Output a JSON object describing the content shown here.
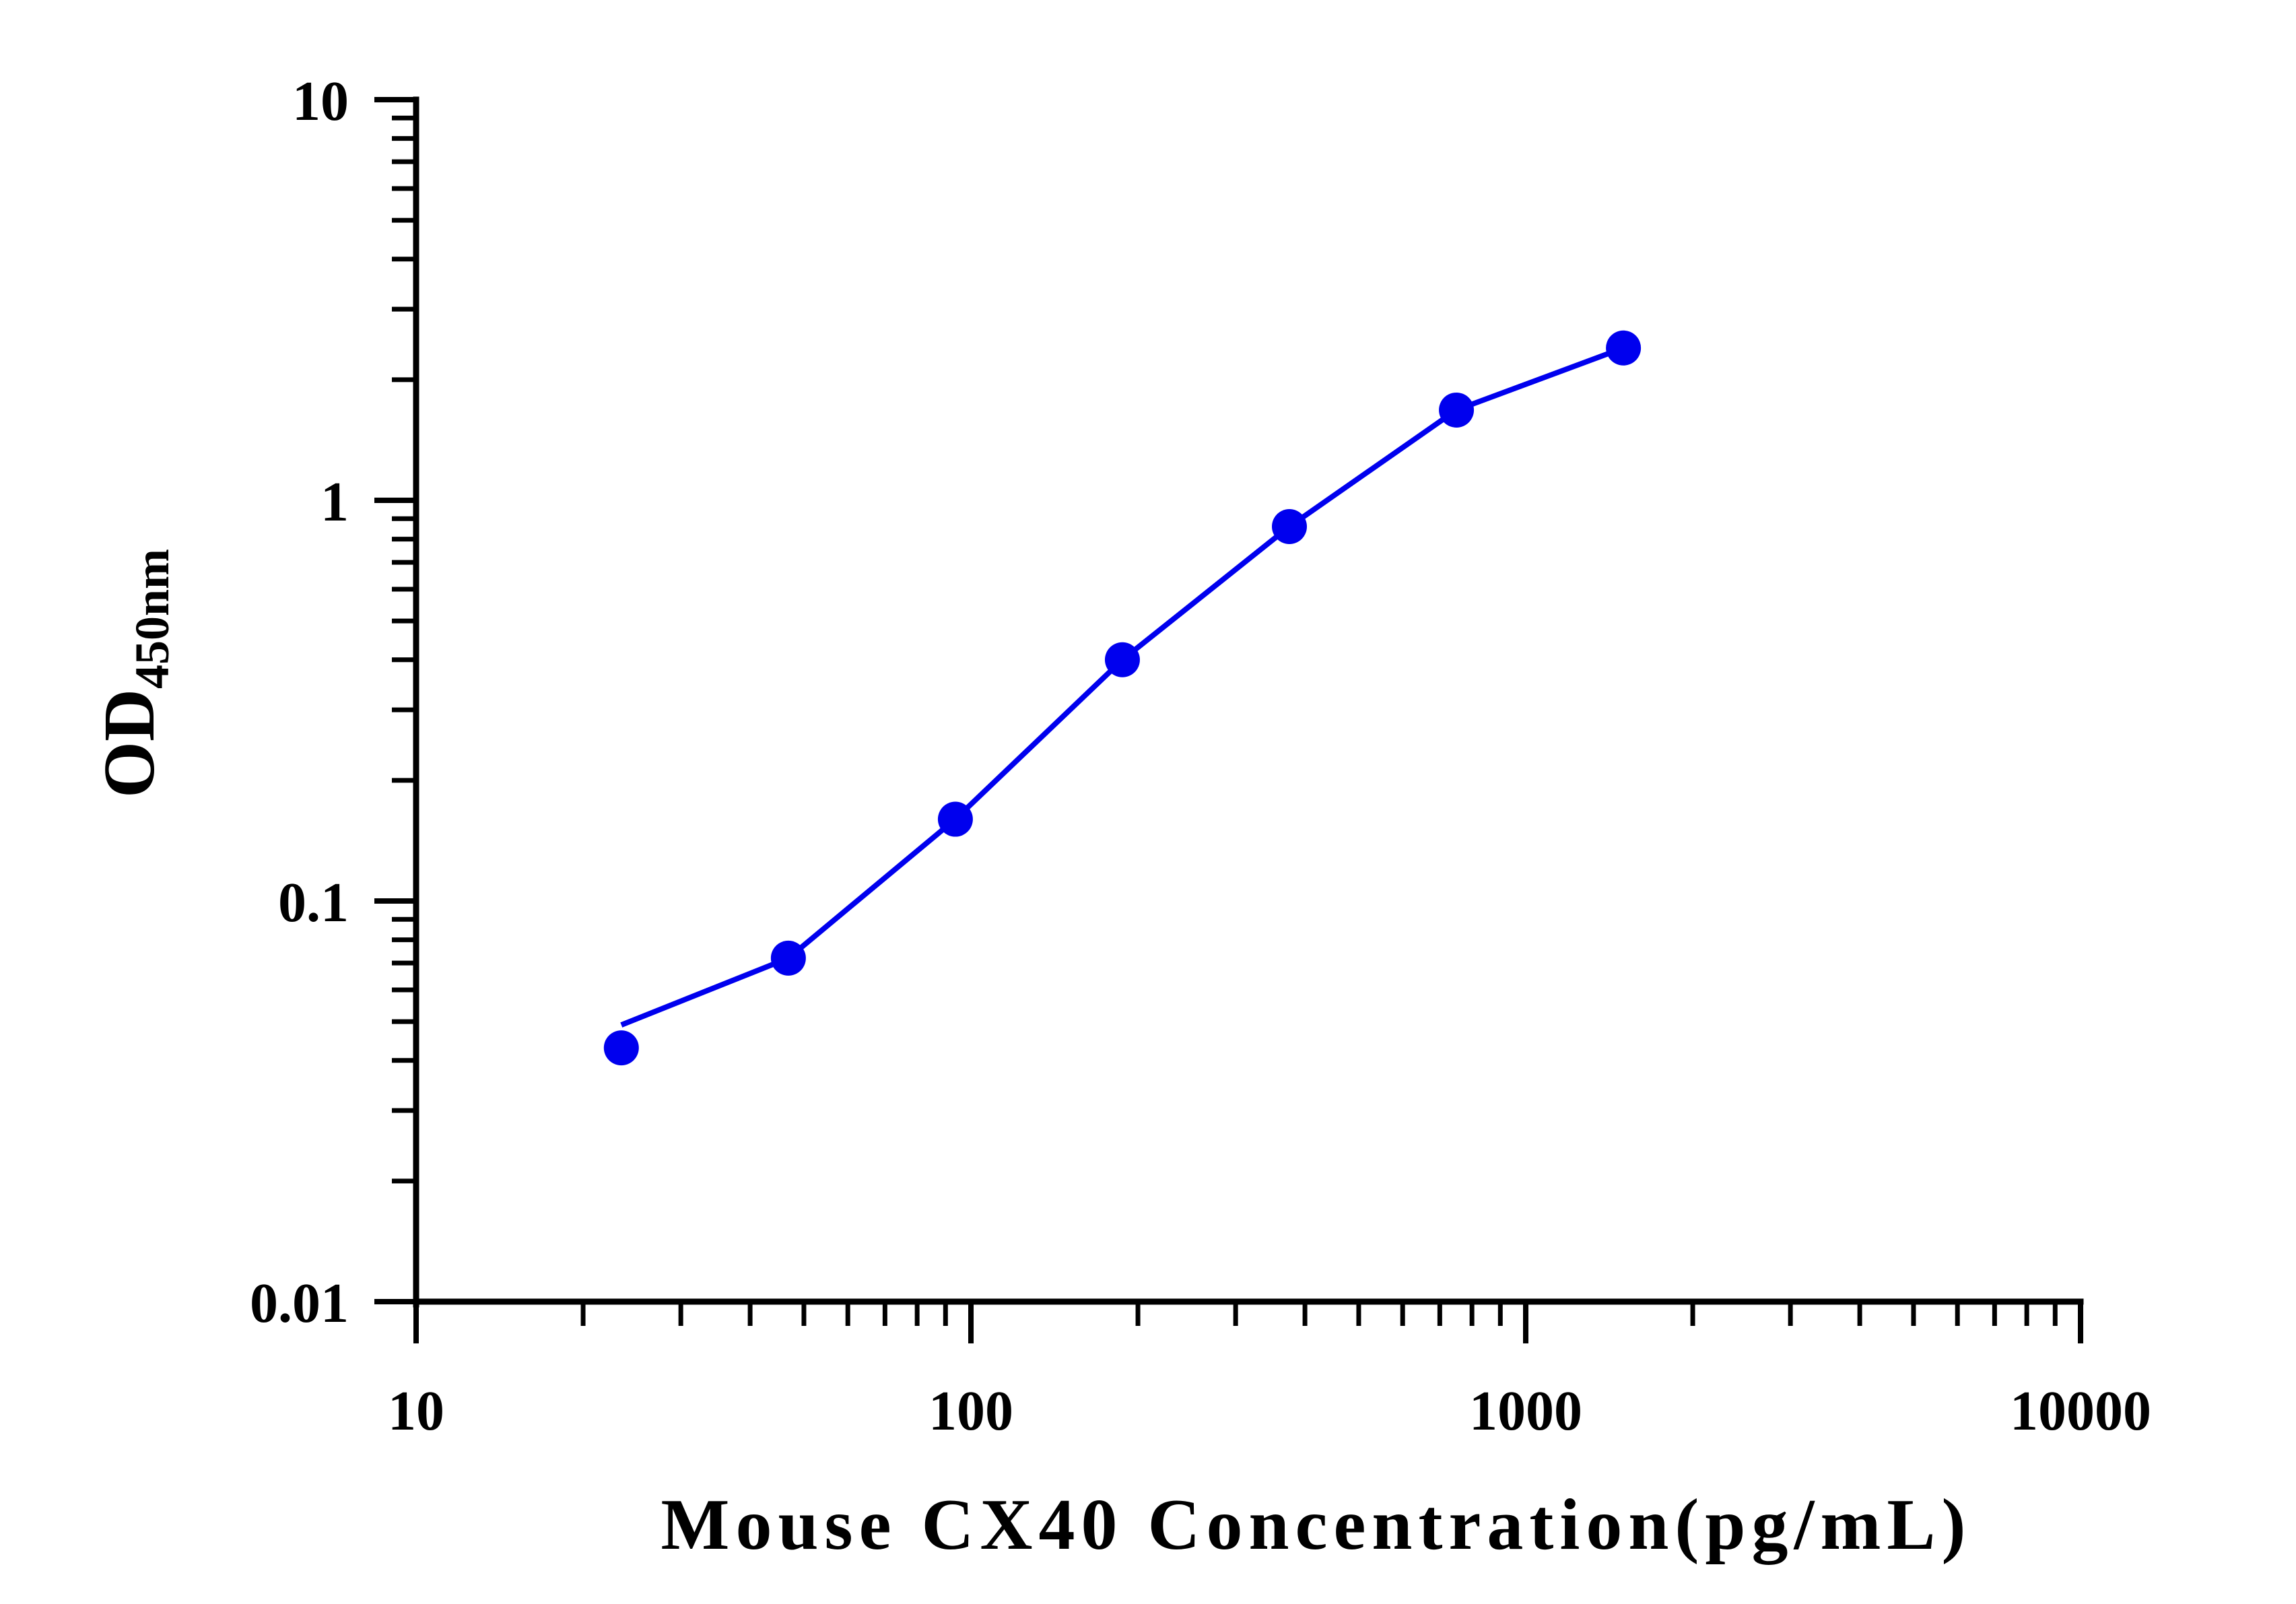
{
  "chart_data": {
    "type": "line",
    "title": "",
    "xlabel": "Mouse CX40 Concentration(pg/mL)",
    "ylabel": "OD",
    "ylabel_subscript": "450nm",
    "x_scale": "log",
    "y_scale": "log",
    "xlim": [
      10,
      10000
    ],
    "ylim": [
      0.01,
      10
    ],
    "x_ticks": [
      "10",
      "100",
      "1000",
      "10000"
    ],
    "y_ticks": [
      "0.01",
      "0.1",
      "1",
      "10"
    ],
    "grid": false,
    "legend": "none",
    "series": [
      {
        "x": [
          23.4375,
          46.875,
          93.75,
          187.5,
          375,
          750,
          1500
        ],
        "y": [
          0.043,
          0.072,
          0.16,
          0.4,
          0.86,
          1.68,
          2.4
        ],
        "color": "#0000ee"
      }
    ]
  }
}
